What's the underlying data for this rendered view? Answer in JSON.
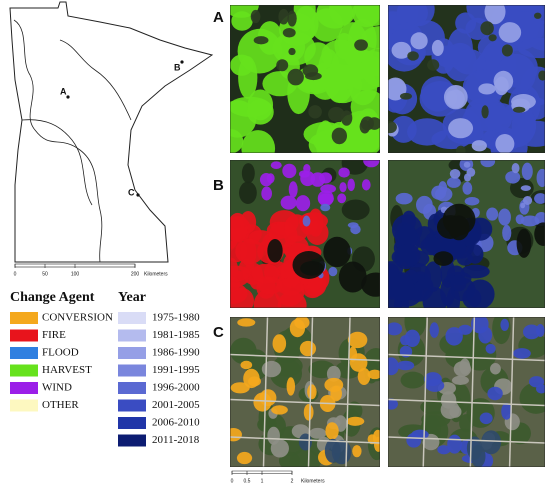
{
  "map": {
    "sites": [
      "A",
      "B",
      "C"
    ],
    "scale": {
      "ticks": [
        "0",
        "50",
        "100",
        "200"
      ],
      "unit": "Kilometers"
    }
  },
  "legend": {
    "change_agent": {
      "title": "Change Agent",
      "items": [
        {
          "label": "CONVERSION",
          "color": "#f4a81d"
        },
        {
          "label": "FIRE",
          "color": "#e8141c"
        },
        {
          "label": "FLOOD",
          "color": "#2f7fe0"
        },
        {
          "label": "HARVEST",
          "color": "#66e21c"
        },
        {
          "label": "WIND",
          "color": "#9b1fe8"
        },
        {
          "label": "OTHER",
          "color": "#fdf8c0"
        }
      ]
    },
    "year": {
      "title": "Year",
      "items": [
        {
          "label": "1975-1980",
          "color": "#d9dcf6"
        },
        {
          "label": "1981-1985",
          "color": "#b4bbee"
        },
        {
          "label": "1986-1990",
          "color": "#959fe6"
        },
        {
          "label": "1991-1995",
          "color": "#7a86dd"
        },
        {
          "label": "1996-2000",
          "color": "#5a69d2"
        },
        {
          "label": "2001-2005",
          "color": "#3a4cc2"
        },
        {
          "label": "2006-2010",
          "color": "#2035a8"
        },
        {
          "label": "2011-2018",
          "color": "#0c1c72"
        }
      ]
    }
  },
  "panels": [
    {
      "label": "A"
    },
    {
      "label": "B"
    },
    {
      "label": "C"
    }
  ],
  "image_scale": {
    "ticks": [
      "0",
      "0.5",
      "1",
      "2"
    ],
    "unit": "Kilometers"
  }
}
